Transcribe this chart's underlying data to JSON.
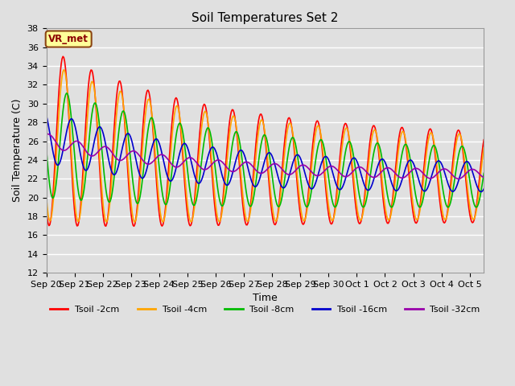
{
  "title": "Soil Temperatures Set 2",
  "xlabel": "Time",
  "ylabel": "Soil Temperature (C)",
  "annotation": "VR_met",
  "ylim": [
    12,
    38
  ],
  "yticks": [
    12,
    14,
    16,
    18,
    20,
    22,
    24,
    26,
    28,
    30,
    32,
    34,
    36,
    38
  ],
  "series": {
    "Tsoil -2cm": {
      "color": "#FF0000"
    },
    "Tsoil -4cm": {
      "color": "#FFA500"
    },
    "Tsoil -8cm": {
      "color": "#00BB00"
    },
    "Tsoil -16cm": {
      "color": "#0000CC"
    },
    "Tsoil -32cm": {
      "color": "#9900AA"
    }
  },
  "x_tick_labels": [
    "Sep 20",
    "Sep 21",
    "Sep 22",
    "Sep 23",
    "Sep 24",
    "Sep 25",
    "Sep 26",
    "Sep 27",
    "Sep 28",
    "Sep 29",
    "Sep 30",
    "Oct 1",
    "Oct 2",
    "Oct 3",
    "Oct 4",
    "Oct 5"
  ],
  "background_color": "#E0E0E0",
  "grid_color": "#FFFFFF",
  "linewidth": 1.2,
  "n_days": 15.5,
  "n_points": 500
}
